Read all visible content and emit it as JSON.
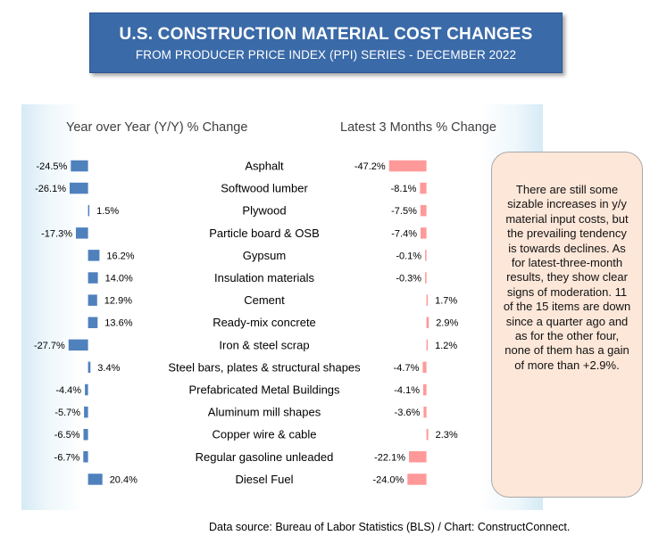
{
  "title": "U.S. CONSTRUCTION MATERIAL COST CHANGES",
  "subtitle": "FROM PRODUCER PRICE INDEX (PPI) SERIES - DECEMBER 2022",
  "left_heading": "Year over Year (Y/Y) % Change",
  "right_heading": "Latest 3 Months % Change",
  "note": "There are still some sizable increases in y/y material input costs, but the prevailing tendency is towards declines. As for latest-three-month results, they show clear signs of moderation. 11 of the 15 items are down since a quarter ago and as for the other four, none of them has a gain of more than +2.9%.",
  "source": "Data source: Bureau of Labor Statistics (BLS) / Chart: ConstructConnect.",
  "colors": {
    "title_bg": "#3a6aa8",
    "yoy_bar": "#4f81bd",
    "three_month_bar": "#ff9999",
    "note_bg": "#fde7d9"
  },
  "chart_data": [
    {
      "type": "bar",
      "orientation": "horizontal",
      "title": "Year over Year (Y/Y) % Change",
      "categories": [
        "Asphalt",
        "Softwood lumber",
        "Plywood",
        "Particle board & OSB",
        "Gypsum",
        "Insulation materials",
        "Cement",
        "Ready-mix concrete",
        "Iron & steel scrap",
        "Steel bars, plates & structural shapes",
        "Prefabricated Metal Buildings",
        "Aluminum mill shapes",
        "Copper wire & cable",
        "Regular gasoline unleaded",
        "Diesel Fuel"
      ],
      "values": [
        -24.5,
        -26.1,
        1.5,
        -17.3,
        16.2,
        14.0,
        12.9,
        13.6,
        -27.7,
        3.4,
        -4.4,
        -5.7,
        -6.5,
        -6.7,
        20.4
      ],
      "labels": [
        "-24.5%",
        "-26.1%",
        "1.5%",
        "-17.3%",
        "16.2%",
        "14.0%",
        "12.9%",
        "13.6%",
        "-27.7%",
        "3.4%",
        "-4.4%",
        "-5.7%",
        "-6.5%",
        "-6.7%",
        "20.4%"
      ],
      "unit": "%",
      "color": "#4f81bd"
    },
    {
      "type": "bar",
      "orientation": "horizontal",
      "title": "Latest 3 Months % Change",
      "categories": [
        "Asphalt",
        "Softwood lumber",
        "Plywood",
        "Particle board & OSB",
        "Gypsum",
        "Insulation materials",
        "Cement",
        "Ready-mix concrete",
        "Iron & steel scrap",
        "Steel bars, plates & structural shapes",
        "Prefabricated Metal Buildings",
        "Aluminum mill shapes",
        "Copper wire & cable",
        "Regular gasoline unleaded",
        "Diesel Fuel"
      ],
      "values": [
        -47.2,
        -8.1,
        -7.5,
        -7.4,
        -0.1,
        -0.3,
        1.7,
        2.9,
        1.2,
        -4.7,
        -4.1,
        -3.6,
        2.3,
        -22.1,
        -24.0
      ],
      "labels": [
        "-47.2%",
        "-8.1%",
        "-7.5%",
        "-7.4%",
        "-0.1%",
        "-0.3%",
        "1.7%",
        "2.9%",
        "1.2%",
        "-4.7%",
        "-4.1%",
        "-3.6%",
        "2.3%",
        "-22.1%",
        "-24.0%"
      ],
      "unit": "%",
      "color": "#ff9999"
    }
  ]
}
